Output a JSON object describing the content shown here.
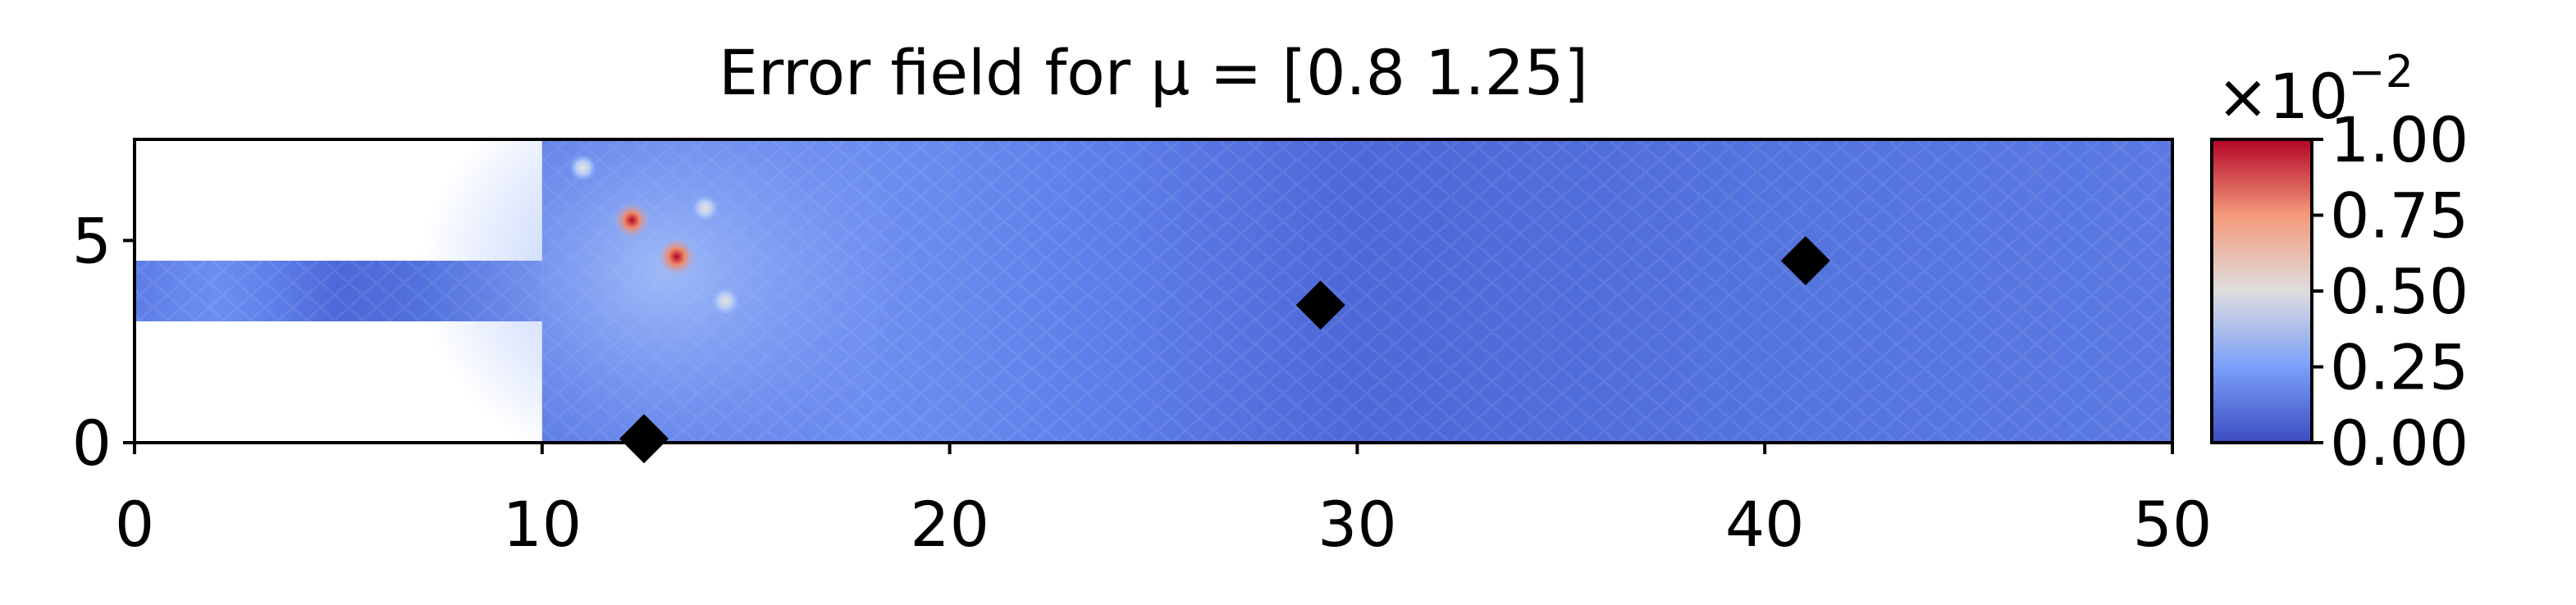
{
  "chart_data": {
    "type": "heatmap",
    "title": "Error field for μ = [0.8  1.25]",
    "xlim": [
      0,
      50
    ],
    "ylim": [
      0,
      7.5
    ],
    "x_ticks": [
      "0",
      "10",
      "20",
      "30",
      "40",
      "50"
    ],
    "x_tick_values": [
      0,
      10,
      20,
      30,
      40,
      50
    ],
    "y_ticks": [
      "0",
      "5"
    ],
    "y_tick_values": [
      0,
      5
    ],
    "domain_regions": [
      {
        "x": [
          0,
          10
        ],
        "y": [
          3,
          4.5
        ]
      },
      {
        "x": [
          10,
          50
        ],
        "y": [
          0,
          7.5
        ]
      }
    ],
    "markers": [
      {
        "x": 12.5,
        "y": 0.1
      },
      {
        "x": 29.1,
        "y": 3.4
      },
      {
        "x": 41.0,
        "y": 4.5
      }
    ],
    "error_hotspots": [
      {
        "x": 13.3,
        "y": 4.6,
        "value": 0.95
      },
      {
        "x": 12.2,
        "y": 5.5,
        "value": 0.85
      },
      {
        "x": 14.5,
        "y": 3.5,
        "value": 0.45
      },
      {
        "x": 11.0,
        "y": 6.8,
        "value": 0.4
      },
      {
        "x": 14.0,
        "y": 5.8,
        "value": 0.4
      }
    ],
    "colorbar": {
      "colormap": "coolwarm",
      "multiplier": "×10",
      "exponent": "−2",
      "range": [
        0,
        1
      ],
      "ticks": [
        "0.00",
        "0.25",
        "0.50",
        "0.75",
        "1.00"
      ],
      "tick_values": [
        0,
        0.25,
        0.5,
        0.75,
        1.0
      ],
      "colors": [
        "#3b4cc0",
        "#7b9ff9",
        "#dddddd",
        "#f49a7b",
        "#b40426"
      ]
    }
  }
}
